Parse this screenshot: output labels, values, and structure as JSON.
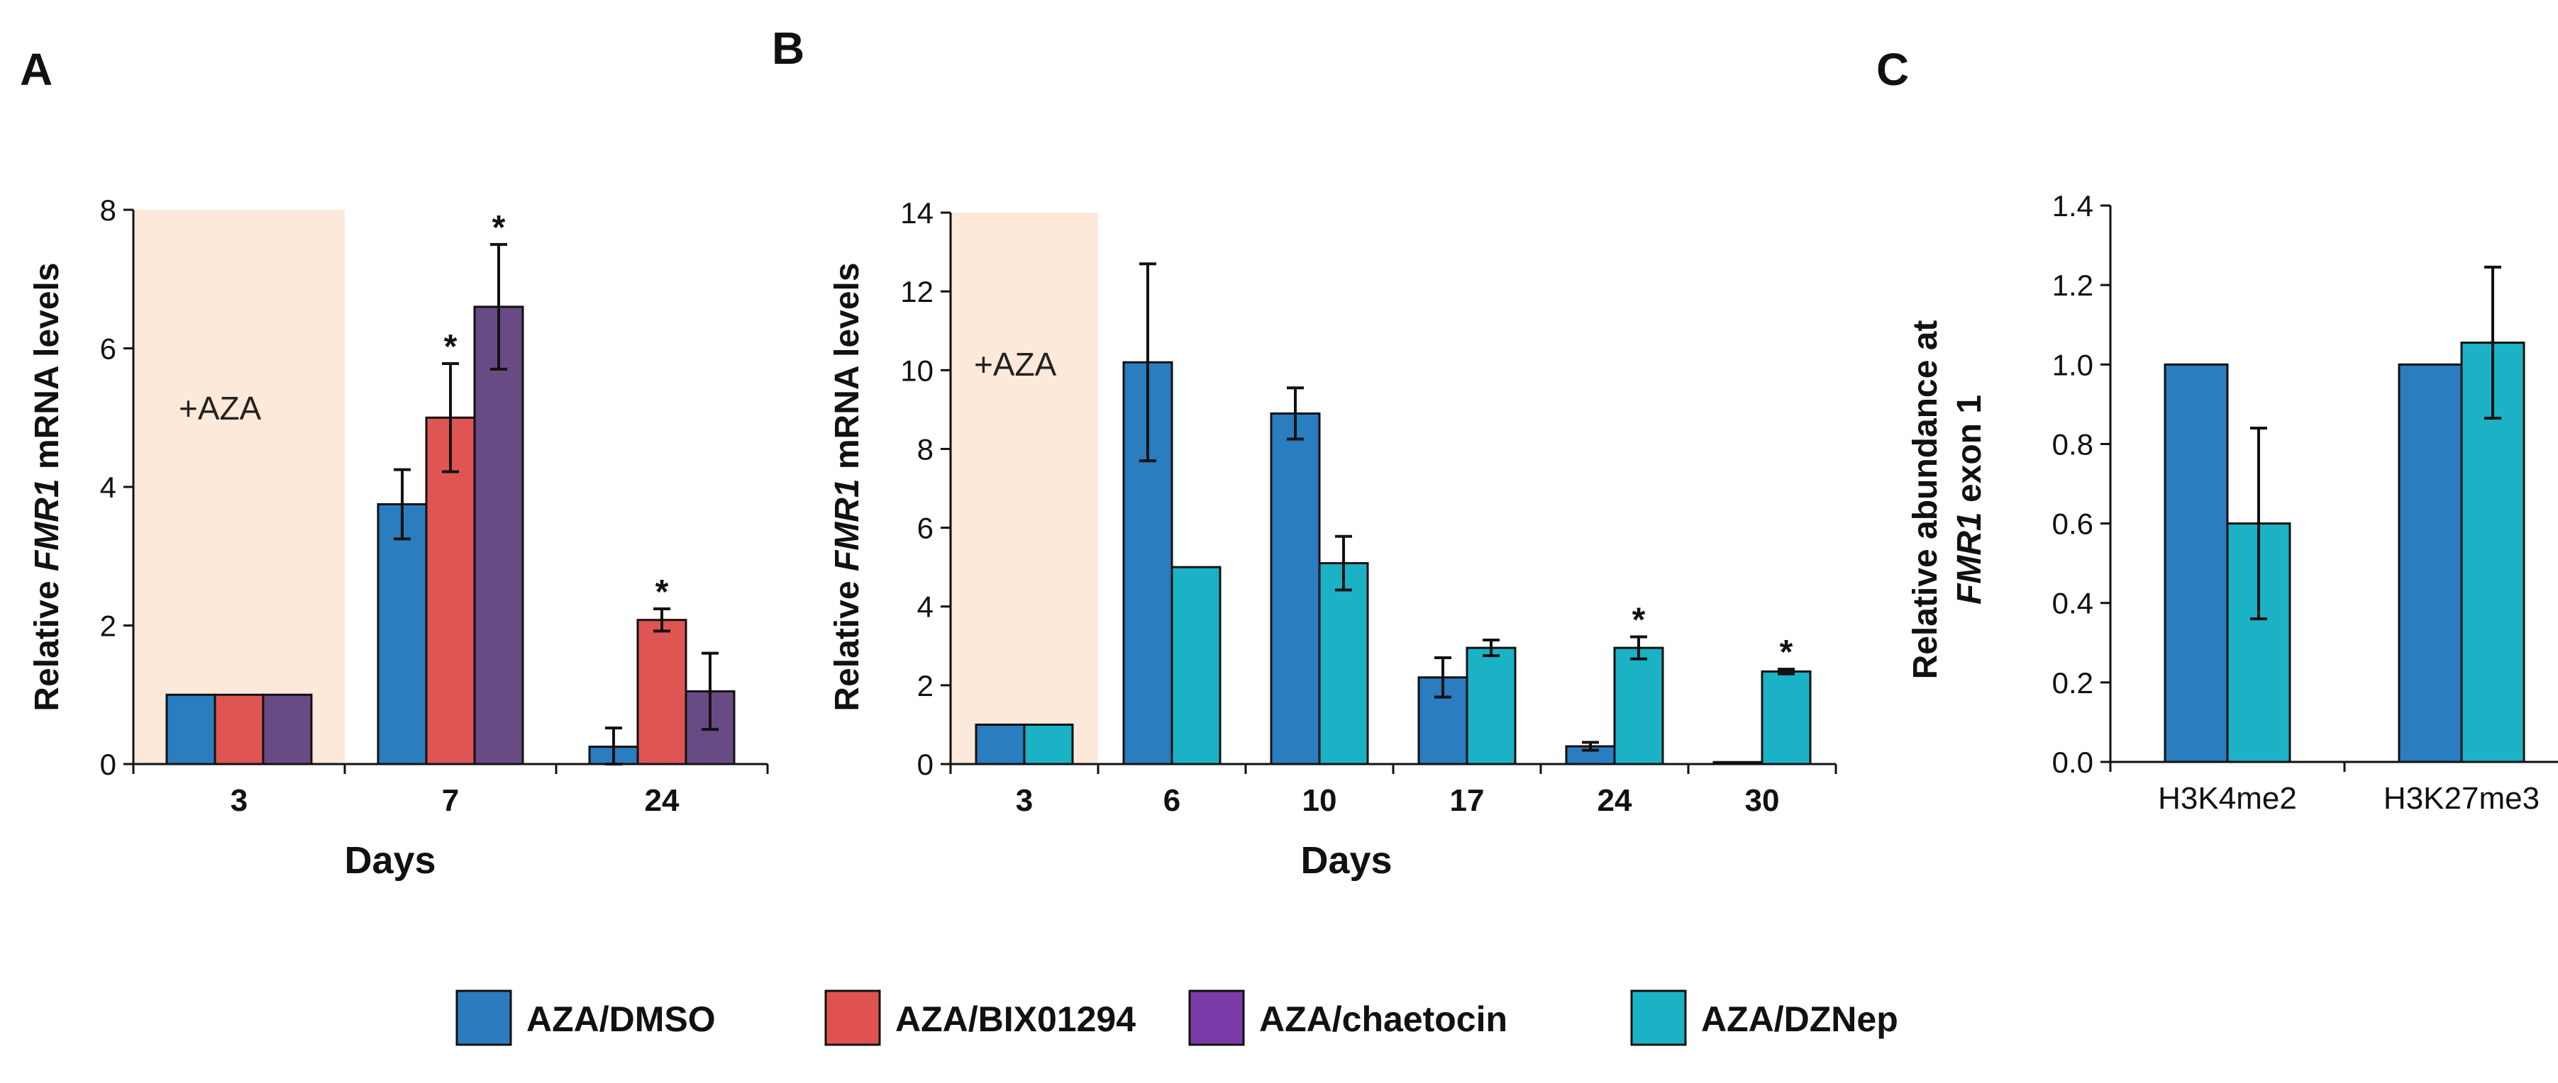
{
  "panels": [
    {
      "letter": "A",
      "ylabel_parts": [
        "Relative ",
        "FMR1",
        " mRNA levels"
      ],
      "xlabel": "Days",
      "shade_label": "+AZA"
    },
    {
      "letter": "B",
      "ylabel_parts": [
        "Relative ",
        "FMR1",
        " mRNA levels"
      ],
      "xlabel": "Days",
      "shade_label": "+AZA"
    },
    {
      "letter": "C",
      "ylabel_line1": "Relative abundance at",
      "ylabel_line2_parts": [
        "FMR1",
        " exon 1"
      ],
      "xlabel": ""
    }
  ],
  "legend": [
    {
      "label": "AZA/DMSO",
      "color": "#2c7bbf"
    },
    {
      "label": "AZA/BIX01294",
      "color": "#e05252"
    },
    {
      "label": "AZA/chaetocin",
      "color": "#7a3aa8"
    },
    {
      "label": "AZA/DZNep",
      "color": "#1bb2c5"
    }
  ],
  "chart_data": [
    {
      "type": "bar",
      "categories": [
        "3",
        "7",
        "24"
      ],
      "xlabel": "Days",
      "ylabel": "Relative FMR1 mRNA levels",
      "ylim": [
        0,
        8
      ],
      "yticks": [
        0,
        2,
        4,
        6,
        8
      ],
      "ytick_labels": [
        "0",
        "2",
        "4",
        "6",
        "8"
      ],
      "shaded_category": "3",
      "annotation": "+AZA",
      "series": [
        {
          "name": "AZA/DMSO",
          "color": "#2c7bbf",
          "fill": "#2a7dbf",
          "values": [
            1.0,
            3.75,
            0.25
          ],
          "errors": [
            0,
            0.5,
            0.27
          ],
          "significant": [
            false,
            false,
            false
          ]
        },
        {
          "name": "AZA/BIX01294",
          "color": "#e05252",
          "fill": "#de5554",
          "values": [
            1.0,
            5.0,
            2.08
          ],
          "errors": [
            0,
            0.78,
            0.16
          ],
          "significant": [
            false,
            true,
            true
          ]
        },
        {
          "name": "AZA/chaetocin",
          "color": "#7a3aa8",
          "fill": "#684a84",
          "values": [
            1.0,
            6.6,
            1.05
          ],
          "errors": [
            0,
            0.9,
            0.55
          ],
          "significant": [
            false,
            true,
            false
          ]
        }
      ]
    },
    {
      "type": "bar",
      "categories": [
        "3",
        "6",
        "10",
        "17",
        "24",
        "30"
      ],
      "xlabel": "Days",
      "ylabel": "Relative FMR1 mRNA levels",
      "ylim": [
        0,
        14
      ],
      "yticks": [
        0,
        2,
        4,
        6,
        8,
        10,
        12,
        14
      ],
      "ytick_labels": [
        "0",
        "2",
        "4",
        "6",
        "8",
        "10",
        "12",
        "14"
      ],
      "shaded_category": "3",
      "annotation": "+AZA",
      "series": [
        {
          "name": "AZA/DMSO",
          "color": "#2c7bbf",
          "fill": "#2a7dbf",
          "values": [
            1.0,
            10.2,
            8.9,
            2.2,
            0.45,
            0.05
          ],
          "errors": [
            0,
            2.5,
            0.65,
            0.5,
            0.1,
            0
          ],
          "significant": [
            false,
            false,
            false,
            false,
            false,
            false
          ]
        },
        {
          "name": "AZA/DZNep",
          "color": "#1bb2c5",
          "fill": "#1bb2c5",
          "values": [
            1.0,
            5.0,
            5.1,
            2.95,
            2.95,
            2.35
          ],
          "errors": [
            0,
            0,
            0.68,
            0.2,
            0.28,
            0.06
          ],
          "significant": [
            false,
            false,
            false,
            false,
            true,
            true
          ]
        }
      ]
    },
    {
      "type": "bar",
      "categories": [
        "H3K4me2",
        "H3K27me3"
      ],
      "xlabel": "",
      "ylabel": "Relative abundance at FMR1 exon 1",
      "ylim": [
        0,
        1.4
      ],
      "yticks": [
        0,
        0.2,
        0.4,
        0.6,
        0.8,
        1.0,
        1.2,
        1.4
      ],
      "ytick_labels": [
        "0.0",
        "0.2",
        "0.4",
        "0.6",
        "0.8",
        "1.0",
        "1.2",
        "1.4"
      ],
      "series": [
        {
          "name": "AZA/DMSO",
          "color": "#2c7bbf",
          "fill": "#2a7dbf",
          "values": [
            1.0,
            1.0
          ],
          "errors": [
            0,
            0
          ],
          "significant": [
            false,
            false
          ]
        },
        {
          "name": "AZA/DZNep",
          "color": "#1bb2c5",
          "fill": "#1bb2c5",
          "values": [
            0.6,
            1.055
          ],
          "errors": [
            0.24,
            0.19
          ],
          "significant": [
            false,
            false
          ]
        }
      ]
    }
  ]
}
